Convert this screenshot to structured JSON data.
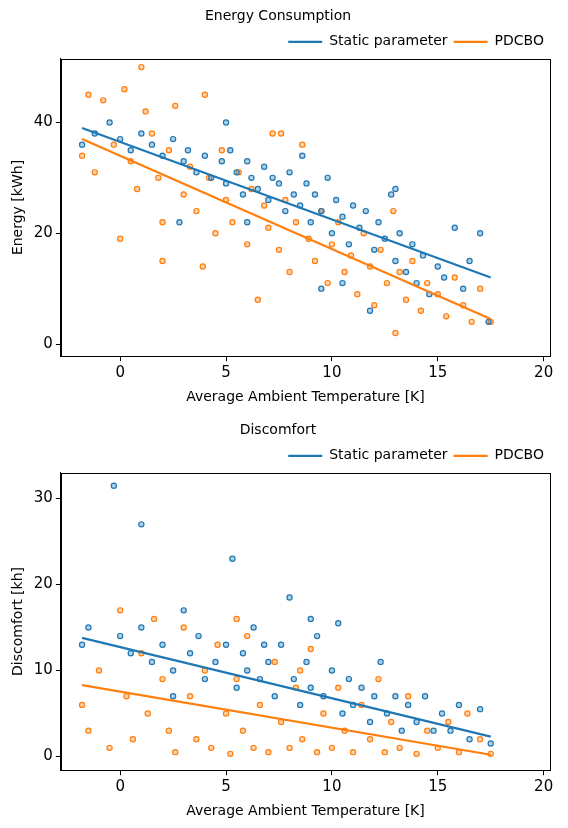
{
  "chart_data": [
    {
      "type": "scatter",
      "title": "Energy Consumption",
      "x_label": "Average Ambient Temperature [K]",
      "y_label": "Energy [kWh]",
      "xlim": [
        -2.8,
        20.3
      ],
      "xticks": [
        0,
        5,
        10,
        15,
        20
      ],
      "ylim": [
        -2.2,
        51.5
      ],
      "yticks": [
        0,
        20,
        40
      ],
      "grid": false,
      "legend": "upper right",
      "marker": "o",
      "series": [
        {
          "name": "Static parameter",
          "color": "#1f77b4",
          "x": [
            -1.8,
            -1.2,
            -0.5,
            0,
            0.5,
            1,
            1.5,
            2,
            2.5,
            3,
            3.2,
            3.6,
            4,
            4.3,
            4.8,
            5,
            5.2,
            5.5,
            5.8,
            6,
            6.2,
            6.5,
            6.8,
            7,
            7.2,
            7.5,
            7.8,
            8,
            8.2,
            8.5,
            8.8,
            9,
            9.2,
            9.5,
            9.8,
            10,
            10.2,
            10.5,
            10.8,
            11,
            11.3,
            11.6,
            12,
            12.2,
            12.5,
            12.8,
            13,
            13.2,
            13.5,
            13.8,
            14,
            14.3,
            14.6,
            15,
            15.3,
            15.8,
            16.2,
            16.5,
            17,
            17.4,
            10.5,
            11.8,
            9.5,
            13,
            6,
            2.8,
            8.6,
            5
          ],
          "values": [
            36,
            38,
            40,
            37,
            35,
            38,
            36,
            34,
            37,
            33,
            35,
            31,
            34,
            30,
            33,
            29,
            35,
            31,
            27,
            33,
            30,
            28,
            32,
            26,
            30,
            29,
            24,
            31,
            27,
            25,
            29,
            22,
            27,
            24,
            30,
            20,
            26,
            23,
            18,
            25,
            21,
            24,
            17,
            22,
            19,
            27,
            15,
            20,
            13,
            18,
            11,
            16,
            9,
            14,
            12,
            21,
            10,
            15,
            20,
            4,
            11,
            6,
            10,
            28,
            22,
            22,
            34,
            40
          ],
          "trend": {
            "x": [
              -1.8,
              17.5
            ],
            "values": [
              39,
              12
            ]
          }
        },
        {
          "name": "PDCBO",
          "color": "#ff7f0e",
          "x": [
            -1.8,
            -1.5,
            -1.2,
            -0.8,
            -0.3,
            0,
            0.2,
            0.5,
            0.8,
            1,
            1.2,
            1.5,
            1.8,
            2,
            2.3,
            2.6,
            3,
            3.3,
            3.6,
            4,
            4.2,
            4.5,
            4.8,
            5,
            5.3,
            5.6,
            6,
            6.2,
            6.5,
            6.8,
            7,
            7.2,
            7.5,
            7.8,
            8,
            8.3,
            8.6,
            8.9,
            9.2,
            9.5,
            9.8,
            10,
            10.3,
            10.6,
            10.9,
            11.2,
            11.5,
            11.8,
            12,
            12.3,
            12.6,
            13,
            13.2,
            13.5,
            13.8,
            14.2,
            14.5,
            15,
            15.4,
            15.8,
            16.2,
            16.6,
            17,
            17.5,
            7.6,
            2,
            3.9,
            12.9
          ],
          "values": [
            34,
            45,
            31,
            44,
            36,
            19,
            46,
            33,
            28,
            50,
            42,
            38,
            30,
            15,
            35,
            43,
            27,
            32,
            24,
            45,
            30,
            20,
            35,
            26,
            22,
            31,
            18,
            28,
            8,
            25,
            21,
            38,
            17,
            26,
            13,
            22,
            36,
            19,
            15,
            24,
            11,
            18,
            22,
            13,
            16,
            9,
            20,
            14,
            7,
            17,
            11,
            2,
            13,
            8,
            15,
            6,
            11,
            9,
            5,
            12,
            7,
            4,
            10,
            4,
            38,
            22,
            14,
            24
          ],
          "trend": {
            "x": [
              -1.8,
              17.5
            ],
            "values": [
              37,
              4.5
            ]
          }
        }
      ]
    },
    {
      "type": "scatter",
      "title": "Discomfort",
      "x_label": "Average Ambient Temperature [K]",
      "y_label": "Discomfort [kh]",
      "xlim": [
        -2.8,
        20.3
      ],
      "xticks": [
        0,
        5,
        10,
        15,
        20
      ],
      "ylim": [
        -1.6,
        33
      ],
      "yticks": [
        0,
        10,
        20,
        30
      ],
      "grid": false,
      "legend": "upper right",
      "marker": "o",
      "series": [
        {
          "name": "Static parameter",
          "color": "#1f77b4",
          "x": [
            -1.8,
            -1.5,
            -0.3,
            0,
            0.5,
            1,
            1,
            1.5,
            2,
            2.5,
            3,
            3.3,
            3.7,
            4,
            4.5,
            5,
            5.3,
            5.5,
            5.8,
            6,
            6.3,
            6.6,
            7,
            7.3,
            7.6,
            8,
            8.2,
            8.5,
            8.8,
            9,
            9.3,
            9.6,
            10,
            10.3,
            10.5,
            10.8,
            11,
            11.4,
            11.8,
            12,
            12.3,
            12.6,
            13,
            13.3,
            13.6,
            14,
            14.4,
            14.8,
            15.2,
            15.6,
            16,
            16.5,
            17,
            17.5,
            9,
            6.8,
            2.5
          ],
          "values": [
            13,
            15,
            31.5,
            14,
            12,
            27,
            15,
            11,
            13,
            10,
            17,
            12,
            14,
            9,
            11,
            13,
            23,
            8,
            12,
            10,
            15,
            9,
            11,
            7,
            13,
            18.5,
            9,
            6,
            11,
            8,
            14,
            7,
            10,
            15.5,
            5,
            9,
            6,
            8,
            4,
            7,
            11,
            5,
            7,
            3,
            6,
            4,
            7,
            3,
            5,
            3,
            6,
            2,
            5.5,
            1.5,
            16,
            13,
            7
          ],
          "trend": {
            "x": [
              -1.8,
              17.5
            ],
            "values": [
              13.8,
              2.3
            ]
          }
        },
        {
          "name": "PDCBO",
          "color": "#ff7f0e",
          "x": [
            -1.8,
            -1.5,
            -1,
            -0.5,
            0,
            0.3,
            0.6,
            1,
            1.3,
            1.6,
            2,
            2.3,
            2.6,
            3,
            3.3,
            3.6,
            4,
            4.3,
            4.6,
            5,
            5.2,
            5.5,
            5.8,
            6,
            6.3,
            6.6,
            7,
            7.3,
            7.6,
            8,
            8.3,
            8.6,
            9,
            9.3,
            9.6,
            10,
            10.3,
            10.6,
            11,
            11.4,
            11.8,
            12.2,
            12.5,
            12.8,
            13.2,
            13.6,
            14,
            14.5,
            15,
            15.5,
            16,
            16.4,
            17,
            17.5,
            5.5,
            8.5
          ],
          "values": [
            6,
            3,
            10,
            1,
            17,
            7,
            2,
            12,
            5,
            16,
            9,
            3,
            0.5,
            15,
            7,
            2,
            10,
            1,
            13,
            5,
            0.3,
            9,
            3,
            14,
            1,
            6,
            0.5,
            11,
            4,
            1,
            8,
            2,
            12.5,
            0.5,
            5,
            1,
            8,
            3,
            0.5,
            6,
            2,
            9,
            0.5,
            4,
            1,
            7,
            0.3,
            3,
            1,
            4,
            0.5,
            5,
            2,
            0.3,
            16,
            10
          ],
          "trend": {
            "x": [
              -1.8,
              17.5
            ],
            "values": [
              8.3,
              0.2
            ]
          }
        }
      ]
    }
  ]
}
